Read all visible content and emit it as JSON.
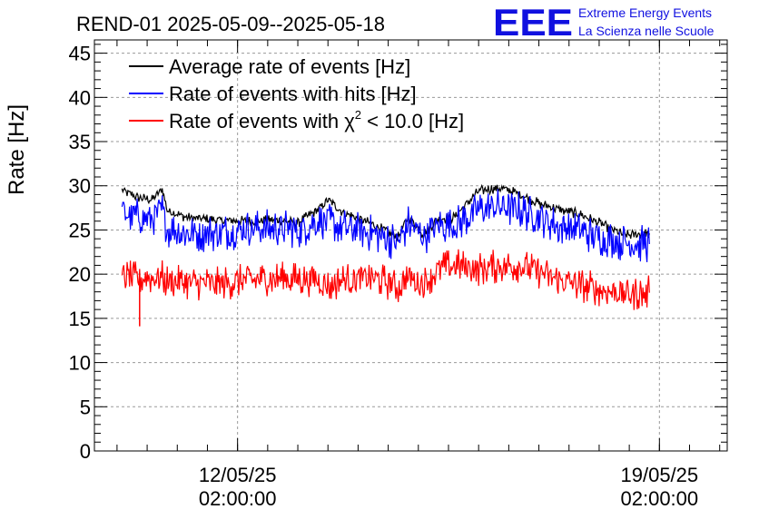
{
  "header": {
    "title": "REND-01 2025-05-09--2025-05-18",
    "logo_text": "EEE",
    "org_line1": "Extreme Energy Events",
    "org_line2": "La Scienza nelle Scuole"
  },
  "colors": {
    "average": "#000000",
    "hits": "#0000ff",
    "chi2": "#ff0000",
    "logo": "#1010e0",
    "grid": "#9a9a9a"
  },
  "chart_data": {
    "type": "line",
    "title": "REND-01 2025-05-09--2025-05-18",
    "xlabel": "",
    "ylabel": "Rate [Hz]",
    "ylim": [
      0,
      46.5
    ],
    "xlim": [
      "2025-05-09T17:00:00",
      "2025-05-20T05:00:00"
    ],
    "yticks": [
      0,
      5,
      10,
      15,
      20,
      25,
      30,
      35,
      40,
      45
    ],
    "xticks": [
      {
        "date": "2025-05-12T02:00:00",
        "line1": "12/05/25",
        "line2": "02:00:00"
      },
      {
        "date": "2025-05-19T02:00:00",
        "line1": "19/05/25",
        "line2": "02:00:00"
      }
    ],
    "grid": true,
    "legend_position": "top-left",
    "series": [
      {
        "name": "Average rate of events [Hz]",
        "legend_main": "Average rate of events [Hz]",
        "color": "#000000",
        "noise": 0.6,
        "x": [
          "2025-05-10T04:00",
          "2025-05-10T10:00",
          "2025-05-10T16:00",
          "2025-05-10T20:00",
          "2025-05-10T22:00",
          "2025-05-11T06:00",
          "2025-05-11T18:00",
          "2025-05-12T06:00",
          "2025-05-12T18:00",
          "2025-05-13T02:00",
          "2025-05-13T10:00",
          "2025-05-13T14:00",
          "2025-05-13T20:00",
          "2025-05-14T08:00",
          "2025-05-14T18:00",
          "2025-05-14T22:00",
          "2025-05-15T04:00",
          "2025-05-15T10:00",
          "2025-05-15T16:00",
          "2025-05-16T02:00",
          "2025-05-16T10:00",
          "2025-05-16T18:00",
          "2025-05-17T02:00",
          "2025-05-17T10:00",
          "2025-05-17T18:00",
          "2025-05-18T02:00",
          "2025-05-18T12:00",
          "2025-05-18T22:00"
        ],
        "y": [
          29.5,
          28.7,
          28.4,
          29.6,
          27.2,
          26.4,
          26.1,
          26.0,
          26.1,
          25.8,
          27.3,
          28.4,
          27.0,
          25.6,
          24.2,
          26.5,
          24.5,
          26.3,
          26.4,
          29.4,
          29.8,
          29.1,
          28.0,
          27.3,
          26.8,
          25.8,
          24.4,
          24.6
        ]
      },
      {
        "name": "Rate of events with hits [Hz]",
        "legend_main": "Rate of events with hits [Hz]",
        "color": "#0000ff",
        "noise": 2.2,
        "x": [
          "2025-05-10T04:00",
          "2025-05-10T10:00",
          "2025-05-10T16:00",
          "2025-05-10T20:00",
          "2025-05-10T22:00",
          "2025-05-11T06:00",
          "2025-05-11T18:00",
          "2025-05-12T06:00",
          "2025-05-12T18:00",
          "2025-05-13T02:00",
          "2025-05-13T10:00",
          "2025-05-13T14:00",
          "2025-05-13T20:00",
          "2025-05-14T08:00",
          "2025-05-14T18:00",
          "2025-05-14T22:00",
          "2025-05-15T04:00",
          "2025-05-15T10:00",
          "2025-05-15T16:00",
          "2025-05-16T02:00",
          "2025-05-16T10:00",
          "2025-05-16T18:00",
          "2025-05-17T02:00",
          "2025-05-17T10:00",
          "2025-05-17T18:00",
          "2025-05-18T02:00",
          "2025-05-18T12:00",
          "2025-05-18T22:00"
        ],
        "y": [
          27.0,
          26.5,
          26.4,
          27.2,
          25.1,
          24.6,
          24.7,
          25.1,
          25.3,
          25.0,
          25.9,
          26.0,
          25.3,
          24.6,
          23.6,
          25.7,
          24.3,
          25.5,
          25.4,
          27.3,
          27.6,
          27.3,
          26.5,
          25.4,
          24.9,
          24.2,
          23.5,
          23.4
        ]
      },
      {
        "name": "Rate of events with χ² < 10.0 [Hz]",
        "legend_main": "Rate of events with χ",
        "legend_sup": "2",
        "legend_rest": " < 10.0 [Hz]",
        "color": "#ff0000",
        "noise": 2.0,
        "x": [
          "2025-05-10T04:00",
          "2025-05-10T10:00",
          "2025-05-10T16:00",
          "2025-05-10T20:00",
          "2025-05-10T22:00",
          "2025-05-11T06:00",
          "2025-05-11T18:00",
          "2025-05-12T06:00",
          "2025-05-12T18:00",
          "2025-05-13T02:00",
          "2025-05-13T10:00",
          "2025-05-13T14:00",
          "2025-05-13T20:00",
          "2025-05-14T08:00",
          "2025-05-14T18:00",
          "2025-05-14T22:00",
          "2025-05-15T04:00",
          "2025-05-15T10:00",
          "2025-05-15T16:00",
          "2025-05-16T02:00",
          "2025-05-16T10:00",
          "2025-05-16T18:00",
          "2025-05-17T02:00",
          "2025-05-17T10:00",
          "2025-05-17T18:00",
          "2025-05-18T02:00",
          "2025-05-18T12:00",
          "2025-05-18T22:00"
        ],
        "y": [
          19.7,
          19.5,
          19.6,
          19.6,
          19.1,
          19.0,
          18.9,
          19.3,
          19.5,
          19.4,
          19.4,
          18.6,
          19.3,
          19.6,
          18.6,
          19.6,
          18.9,
          20.5,
          21.0,
          20.6,
          20.9,
          21.0,
          20.3,
          19.3,
          18.8,
          18.3,
          17.8,
          17.9
        ]
      }
    ],
    "outliers": [
      {
        "series": 2,
        "x": "2025-05-10T11:00",
        "y": 14.1
      }
    ]
  }
}
